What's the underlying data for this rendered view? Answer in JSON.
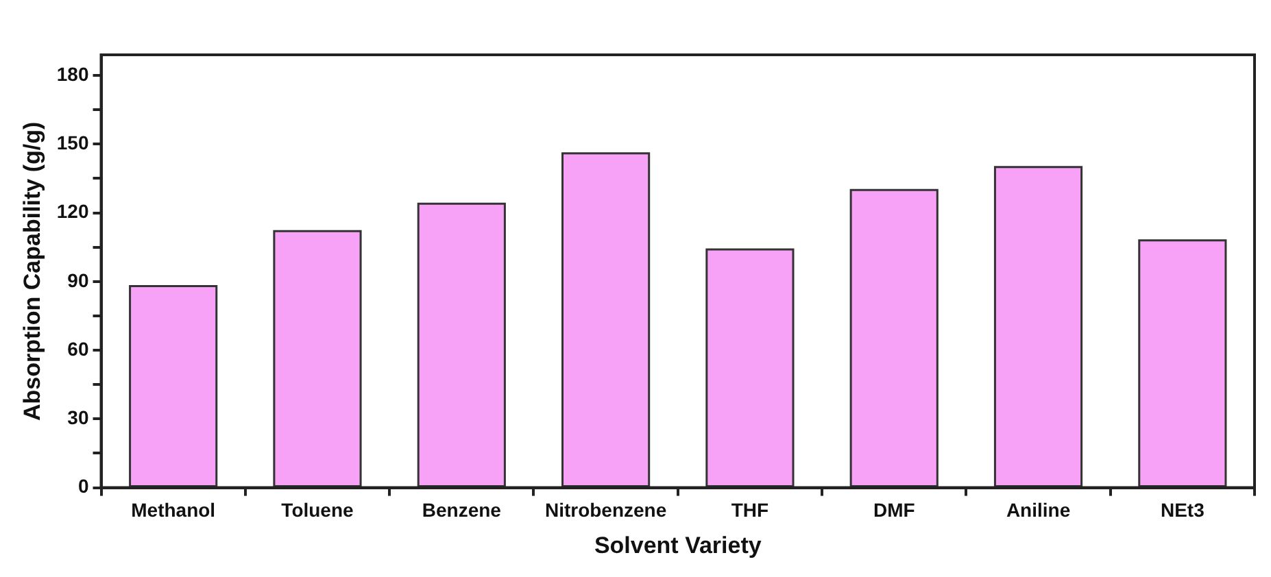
{
  "chart_data": {
    "type": "bar",
    "xlabel": "Solvent Variety",
    "ylabel": "Absorption Capability (g/g)",
    "categories": [
      "Methanol",
      "Toluene",
      "Benzene",
      "Nitrobenzene",
      "THF",
      "DMF",
      "Aniline",
      "NEt3"
    ],
    "values": [
      88,
      112,
      124,
      146,
      104,
      130,
      140,
      108
    ],
    "color": "#f7a1f7",
    "ylim": [
      0,
      189
    ],
    "yticks": [
      0,
      {
        "value": 15,
        "label": null
      },
      30,
      {
        "value": 45,
        "label": null
      },
      60,
      {
        "value": 75,
        "label": null
      },
      90,
      {
        "value": 105,
        "label": null
      },
      120,
      {
        "value": 135,
        "label": null
      },
      150,
      {
        "value": 165,
        "label": null
      },
      180
    ],
    "grid": false,
    "legend": false
  }
}
